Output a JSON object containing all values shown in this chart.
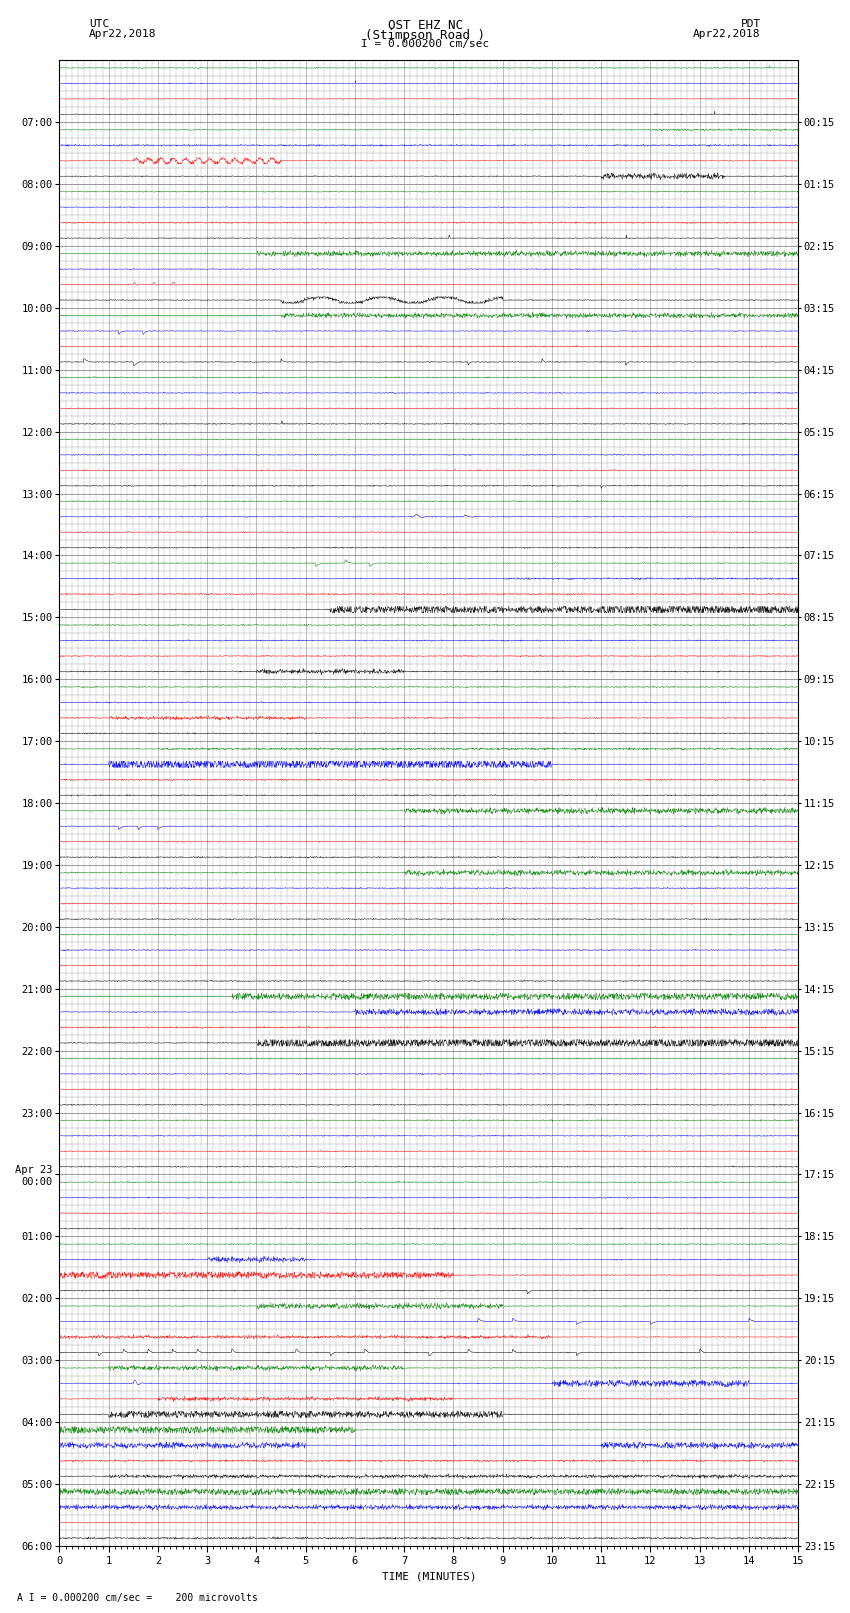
{
  "title_line1": "OST EHZ NC",
  "title_line2": "(Stimpson Road )",
  "title_line3": "I = 0.000200 cm/sec",
  "left_label_top": "UTC",
  "left_label_date": "Apr22,2018",
  "right_label_top": "PDT",
  "right_label_date": "Apr22,2018",
  "bottom_label": "TIME (MINUTES)",
  "bottom_note": "A I = 0.000200 cm/sec =    200 microvolts",
  "utc_times": [
    "07:00",
    "08:00",
    "09:00",
    "10:00",
    "11:00",
    "12:00",
    "13:00",
    "14:00",
    "15:00",
    "16:00",
    "17:00",
    "18:00",
    "19:00",
    "20:00",
    "21:00",
    "22:00",
    "23:00",
    "Apr 23\n00:00",
    "01:00",
    "02:00",
    "03:00",
    "04:00",
    "05:00",
    "06:00"
  ],
  "pdt_times": [
    "00:15",
    "01:15",
    "02:15",
    "03:15",
    "04:15",
    "05:15",
    "06:15",
    "07:15",
    "08:15",
    "09:15",
    "10:15",
    "11:15",
    "12:15",
    "13:15",
    "14:15",
    "15:15",
    "16:15",
    "17:15",
    "18:15",
    "19:15",
    "20:15",
    "21:15",
    "22:15",
    "23:15"
  ],
  "n_hours": 24,
  "n_subtraces": 4,
  "minutes": 15,
  "bg_color": "#ffffff",
  "grid_color": "#888888",
  "line_colors": [
    "black",
    "red",
    "blue",
    "green"
  ],
  "title_fontsize": 9,
  "label_fontsize": 8,
  "tick_fontsize": 7.5
}
